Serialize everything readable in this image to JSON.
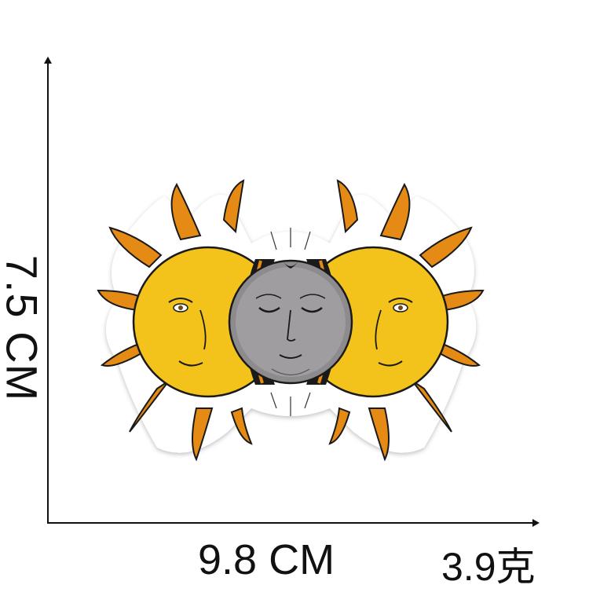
{
  "labels": {
    "height": "7.5 CM",
    "width": "9.8 CM",
    "weight": "3.9克"
  },
  "patch": {
    "description_icons": [
      "sun-left-icon",
      "moon-face-icon",
      "sun-right-icon"
    ],
    "colors": {
      "sun_yellow": "#F3C21B",
      "sun_orange": "#E58A14",
      "moon_gray": "#8E8B8E",
      "outline": "#1A1A1A",
      "backing": "#FFFFFF"
    }
  }
}
